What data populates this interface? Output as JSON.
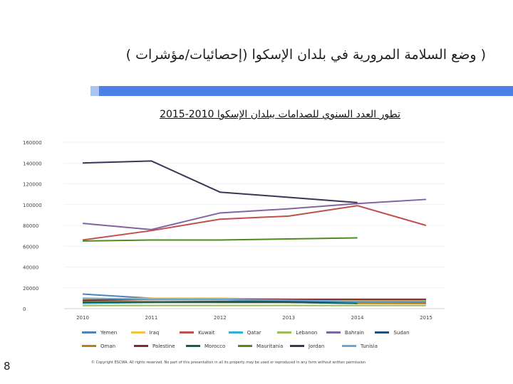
{
  "slide": {
    "title": "( وضع السلامة المرورية في بلدان الإسكوا (إحصائيات/مؤشرات )",
    "page_number": "8",
    "copyright": "© Copyright ESCWA. All rights reserved. No part of this presentation in all its property may be used or reproduced in any form without written permission",
    "accent_color": "#4a80e8",
    "accent_light_color": "#a9c4f2"
  },
  "chart_data": {
    "type": "line",
    "title": "تطور العدد السنوي للصدامات ببلدان الإسكوا 2010-2015",
    "x": [
      "2010",
      "2011",
      "2012",
      "2013",
      "2014",
      "2015"
    ],
    "ylim": [
      0,
      160000
    ],
    "yticks": [
      "0",
      "20000",
      "40000",
      "60000",
      "80000",
      "100000",
      "120000",
      "140000",
      "160000"
    ],
    "grid": true,
    "legend_position": "bottom",
    "series": [
      {
        "name": "Yemen",
        "color": "#4f81bd",
        "values": [
          14000,
          10000,
          9000,
          8000,
          7000,
          6000
        ]
      },
      {
        "name": "Iraq",
        "color": "#f5c242",
        "values": [
          9000,
          10000,
          10000,
          9000,
          8000,
          8000
        ]
      },
      {
        "name": "Kuwait",
        "color": "#c0504d",
        "values": [
          66000,
          75000,
          86000,
          89000,
          99000,
          80000
        ]
      },
      {
        "name": "Qatar",
        "color": "#2eb1d8",
        "values": [
          5000,
          6000,
          7000,
          7000,
          6000,
          5000
        ]
      },
      {
        "name": "Lebanon",
        "color": "#9bbb59",
        "values": [
          3000,
          3000,
          3000,
          3000,
          3000,
          3000
        ]
      },
      {
        "name": "Bahrain",
        "color": "#8064a2",
        "values": [
          82000,
          76000,
          92000,
          96000,
          101000,
          105000
        ]
      },
      {
        "name": "Sudan",
        "color": "#1f4e79",
        "values": [
          6000,
          7000,
          7000,
          7000,
          7000,
          7000
        ]
      },
      {
        "name": "Oman",
        "color": "#c27c0e",
        "values": [
          7000,
          7000,
          6000,
          6000,
          5000,
          5000
        ]
      },
      {
        "name": "Palestine",
        "color": "#7b2c2c",
        "values": [
          8000,
          9000,
          9000,
          9000,
          9000,
          9000
        ]
      },
      {
        "name": "Morocco",
        "color": "#0e5f5a",
        "values": [
          6000,
          6000,
          6000,
          6000,
          5000,
          null
        ]
      },
      {
        "name": "Mauritania",
        "color": "#4e8a1e",
        "values": [
          65000,
          66000,
          66000,
          67000,
          68000,
          null
        ]
      },
      {
        "name": "Jordan",
        "color": "#3b3556",
        "values": [
          140000,
          142000,
          112000,
          107000,
          102000,
          null
        ]
      },
      {
        "name": "Tunisia",
        "color": "#6aa4d8",
        "values": [
          10000,
          9000,
          9000,
          8000,
          7000,
          7000
        ]
      }
    ]
  }
}
